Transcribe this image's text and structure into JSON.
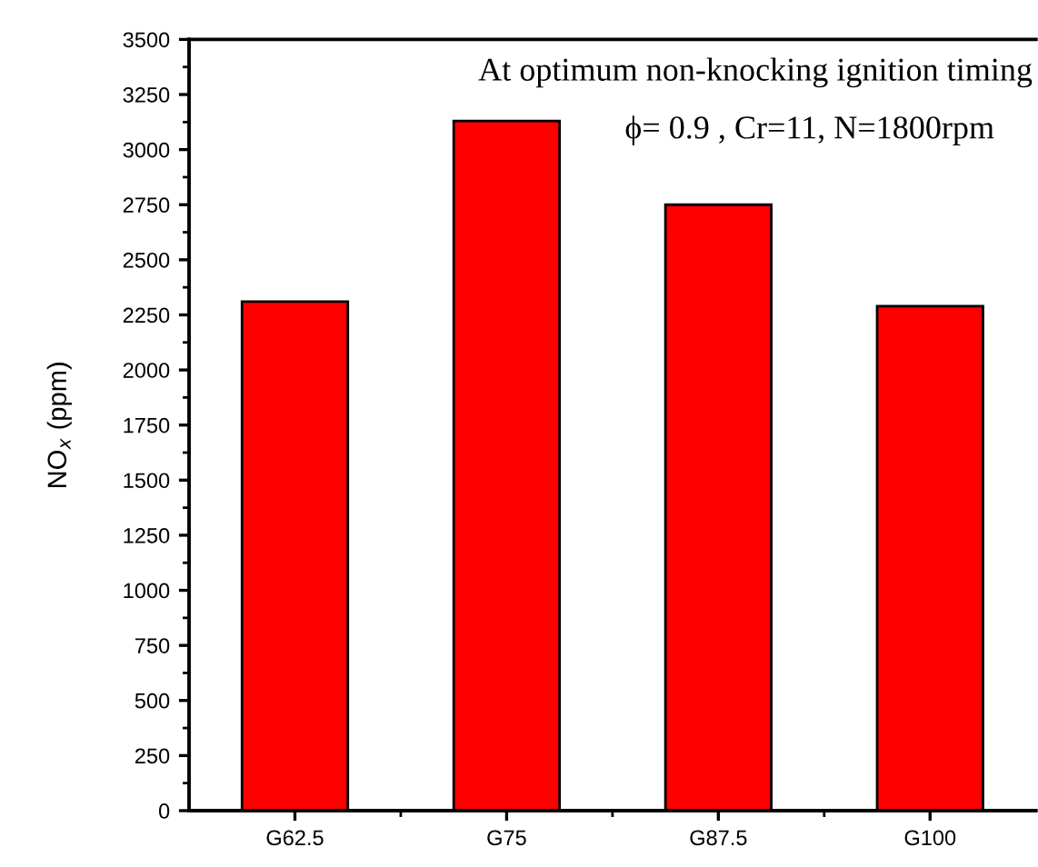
{
  "chart_data": {
    "type": "bar",
    "categories": [
      "G62.5",
      "G75",
      "G87.5",
      "G100"
    ],
    "values": [
      2310,
      3130,
      2750,
      2290
    ],
    "color": "#ff0000",
    "ylabel": "NO$_{x}$ (ppm)",
    "ylim": [
      0,
      3500
    ],
    "yticks": [
      0,
      250,
      500,
      750,
      1000,
      1250,
      1500,
      1750,
      2000,
      2250,
      2500,
      2750,
      3000,
      3250,
      3500
    ],
    "annotations": [
      "At optimum non-knocking ignition timing",
      "ϕ= 0.9 , Cr=11, N=1800rpm"
    ],
    "grid": false
  }
}
